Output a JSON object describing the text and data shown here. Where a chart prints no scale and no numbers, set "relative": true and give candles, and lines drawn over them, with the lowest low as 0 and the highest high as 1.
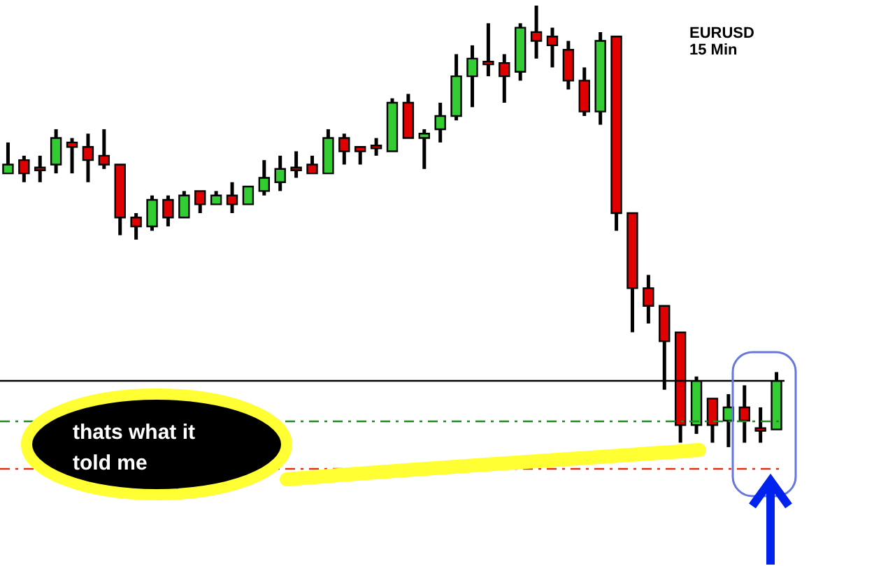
{
  "chart_data": {
    "type": "candlestick",
    "relative": true,
    "categories": [
      null,
      null,
      null,
      null,
      null,
      null,
      null,
      null,
      null,
      null,
      null,
      null,
      null,
      null,
      null,
      null,
      null,
      null,
      null,
      null,
      null,
      null,
      null,
      null,
      null,
      null,
      null,
      null,
      null,
      null,
      null,
      null,
      null,
      null,
      null,
      null,
      null,
      null,
      null,
      null,
      null,
      null,
      null,
      null,
      null,
      null,
      null,
      null,
      null
    ],
    "ohlc": [
      [
        0.62,
        0.69,
        0.62,
        0.64
      ],
      [
        0.65,
        0.66,
        0.6,
        0.62
      ],
      [
        0.63,
        0.66,
        0.6,
        0.63
      ],
      [
        0.64,
        0.72,
        0.62,
        0.7
      ],
      [
        0.69,
        0.7,
        0.62,
        0.68
      ],
      [
        0.68,
        0.71,
        0.6,
        0.65
      ],
      [
        0.66,
        0.72,
        0.63,
        0.64
      ],
      [
        0.64,
        0.64,
        0.48,
        0.52
      ],
      [
        0.52,
        0.53,
        0.47,
        0.5
      ],
      [
        0.5,
        0.57,
        0.49,
        0.56
      ],
      [
        0.56,
        0.57,
        0.5,
        0.52
      ],
      [
        0.52,
        0.58,
        0.52,
        0.57
      ],
      [
        0.58,
        0.58,
        0.53,
        0.55
      ],
      [
        0.55,
        0.58,
        0.55,
        0.57
      ],
      [
        0.57,
        0.6,
        0.53,
        0.55
      ],
      [
        0.55,
        0.59,
        0.55,
        0.59
      ],
      [
        0.58,
        0.65,
        0.57,
        0.61
      ],
      [
        0.6,
        0.66,
        0.58,
        0.63
      ],
      [
        0.63,
        0.67,
        0.61,
        0.63
      ],
      [
        0.64,
        0.66,
        0.62,
        0.62
      ],
      [
        0.62,
        0.72,
        0.62,
        0.7
      ],
      [
        0.7,
        0.71,
        0.64,
        0.67
      ],
      [
        0.68,
        0.68,
        0.64,
        0.67
      ],
      [
        0.68,
        0.7,
        0.66,
        0.68
      ],
      [
        0.67,
        0.79,
        0.67,
        0.78
      ],
      [
        0.78,
        0.8,
        0.7,
        0.7
      ],
      [
        0.7,
        0.72,
        0.63,
        0.71
      ],
      [
        0.72,
        0.78,
        0.69,
        0.75
      ],
      [
        0.75,
        0.89,
        0.74,
        0.84
      ],
      [
        0.84,
        0.91,
        0.77,
        0.88
      ],
      [
        0.87,
        0.96,
        0.84,
        0.87
      ],
      [
        0.87,
        0.89,
        0.78,
        0.84
      ],
      [
        0.85,
        0.96,
        0.83,
        0.95
      ],
      [
        0.94,
        1,
        0.88,
        0.92
      ],
      [
        0.93,
        0.95,
        0.86,
        0.91
      ],
      [
        0.9,
        0.92,
        0.81,
        0.83
      ],
      [
        0.83,
        0.86,
        0.75,
        0.76
      ],
      [
        0.76,
        0.94,
        0.73,
        0.92
      ],
      [
        0.93,
        0.93,
        0.49,
        0.53
      ],
      [
        0.53,
        0.53,
        0.26,
        0.36
      ],
      [
        0.36,
        0.39,
        0.28,
        0.32
      ],
      [
        0.32,
        0.32,
        0.13,
        0.24
      ],
      [
        0.26,
        0.26,
        0.01,
        0.05
      ],
      [
        0.05,
        0.16,
        0.03,
        0.15
      ],
      [
        0.11,
        0.11,
        0.01,
        0.05
      ],
      [
        0.06,
        0.12,
        0,
        0.09
      ],
      [
        0.09,
        0.14,
        0.01,
        0.06
      ],
      [
        0.04,
        0.09,
        0.01,
        0.04
      ],
      [
        0.04,
        0.17,
        0.04,
        0.15
      ]
    ],
    "colors": [
      "#33cc33",
      "#e00000",
      "#e00000",
      "#33cc33",
      "#e00000",
      "#e00000",
      "#e00000",
      "#e00000",
      "#e00000",
      "#33cc33",
      "#e00000",
      "#33cc33",
      "#e00000",
      "#33cc33",
      "#e00000",
      "#33cc33",
      "#33cc33",
      "#33cc33",
      "#e00000",
      "#e00000",
      "#33cc33",
      "#e00000",
      "#e00000",
      "#e00000",
      "#33cc33",
      "#e00000",
      "#33cc33",
      "#33cc33",
      "#33cc33",
      "#33cc33",
      "#e00000",
      "#e00000",
      "#33cc33",
      "#e00000",
      "#e00000",
      "#e00000",
      "#e00000",
      "#33cc33",
      "#e00000",
      "#e00000",
      "#e00000",
      "#e00000",
      "#e00000",
      "#33cc33",
      "#e00000",
      "#33cc33",
      "#e00000",
      "#e00000",
      "#33cc33"
    ],
    "ref_lines": [
      {
        "axis": "y",
        "value": 0.15,
        "color": "#000000",
        "line_style": "solid"
      },
      {
        "axis": "y",
        "value": 0.063,
        "color": "#228822",
        "line_style": "dashed"
      },
      {
        "axis": "y",
        "value": -0.05,
        "color": "#e03010",
        "line_style": "dashed"
      }
    ],
    "annotations": [
      "EURUSD\n15 Min",
      "thats what it\ntold me"
    ],
    "tick_labels": false
  }
}
